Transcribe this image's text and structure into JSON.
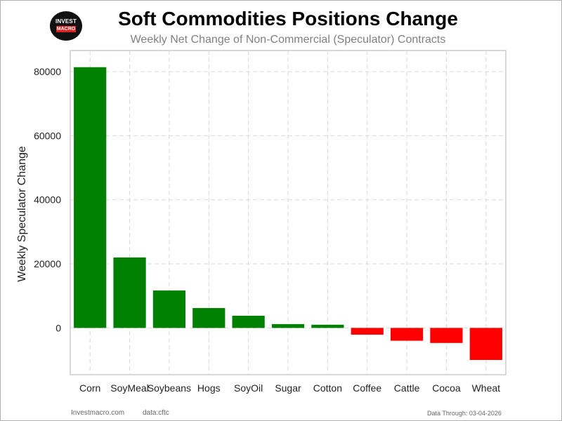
{
  "header": {
    "title": "Soft Commodities Positions Change",
    "subtitle": "Weekly Net Change of Non-Commercial (Speculator) Contracts",
    "logo_line1": "INVEST",
    "logo_line2": "MACRO"
  },
  "footer": {
    "site": "Investmacro.com",
    "source": "data:cftc",
    "data_through": "Data Through: 03-04-2026"
  },
  "colors": {
    "positive": "#008000",
    "negative": "#ff0000",
    "grid": "#d9d9d9"
  },
  "chart_data": {
    "type": "bar",
    "title": "Soft Commodities Positions Change",
    "subtitle": "Weekly Net Change of Non-Commercial (Speculator) Contracts",
    "xlabel": "",
    "ylabel": "Weekly Speculator Change",
    "categories": [
      "Corn",
      "SoyMeal",
      "Soybeans",
      "Hogs",
      "SoyOil",
      "Sugar",
      "Cotton",
      "Coffee",
      "Cattle",
      "Cocoa",
      "Wheat"
    ],
    "values": [
      81400,
      22000,
      11700,
      6200,
      3800,
      1200,
      1000,
      -2100,
      -4000,
      -4700,
      -10000
    ],
    "yticks": [
      0,
      20000,
      40000,
      60000,
      80000
    ],
    "ylim": [
      -14600,
      86600
    ],
    "grid": true
  }
}
